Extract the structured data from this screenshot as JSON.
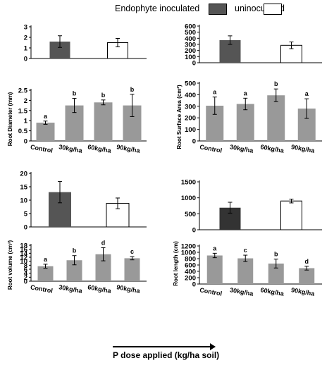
{
  "legend": {
    "items": [
      {
        "label": "Endophyte inoculated",
        "color": "#555555"
      },
      {
        "label": "uninoculated",
        "color": "#ffffff"
      }
    ]
  },
  "x_axis_note": "P dose applied (kg/ha soil)",
  "colors": {
    "inoculated": "#555555",
    "uninoculated": "#ffffff",
    "dose": "#999999"
  },
  "chart_data": [
    {
      "id": "diam-top",
      "type": "bar",
      "categories": [
        "inoculated",
        "uninoculated"
      ],
      "values": [
        1.6,
        1.5
      ],
      "errors": [
        0.55,
        0.4
      ],
      "colors": [
        "#555555",
        "#ffffff"
      ],
      "ylim": [
        0,
        3
      ],
      "yticks": [
        0,
        1,
        2,
        3
      ],
      "ylabel": "",
      "xlabels": [
        "",
        ""
      ]
    },
    {
      "id": "diam-bottom",
      "type": "bar",
      "categories": [
        "Control",
        "30kg/ha",
        "60kg/ha",
        "90kg/ha"
      ],
      "values": [
        0.9,
        1.75,
        1.9,
        1.75
      ],
      "errors": [
        0.08,
        0.35,
        0.12,
        0.55
      ],
      "letters": [
        "a",
        "b",
        "b",
        "b"
      ],
      "colors": [
        "#999999",
        "#999999",
        "#999999",
        "#999999"
      ],
      "ylim": [
        0,
        2.5
      ],
      "yticks": [
        0,
        0.5,
        1,
        1.5,
        2,
        2.5
      ],
      "ytick_labels": [
        "0",
        "0.5",
        "1",
        "1.5",
        "2",
        "2.5"
      ],
      "ylabel": "Root Diameter (mm)"
    },
    {
      "id": "sa-top",
      "type": "bar",
      "categories": [
        "inoculated",
        "uninoculated"
      ],
      "values": [
        370,
        285
      ],
      "errors": [
        70,
        55
      ],
      "colors": [
        "#555555",
        "#ffffff"
      ],
      "ylim": [
        0,
        600
      ],
      "yticks": [
        0,
        100,
        200,
        300,
        400,
        500,
        600
      ],
      "ylabel": "",
      "xlabels": [
        "",
        ""
      ]
    },
    {
      "id": "sa-bottom",
      "type": "bar",
      "categories": [
        "Control",
        "30kg/ha",
        "60kg/ha",
        "90kg/ha"
      ],
      "values": [
        305,
        320,
        395,
        280
      ],
      "errors": [
        75,
        50,
        55,
        85
      ],
      "letters": [
        "a",
        "a",
        "b",
        "a"
      ],
      "colors": [
        "#999999",
        "#999999",
        "#999999",
        "#999999"
      ],
      "ylim": [
        0,
        500
      ],
      "yticks": [
        0,
        100,
        200,
        300,
        400,
        500
      ],
      "ylabel": "Root Surface Area (cm²)"
    },
    {
      "id": "vol-top",
      "type": "bar",
      "categories": [
        "inoculated",
        "uninoculated"
      ],
      "values": [
        13,
        8.8
      ],
      "errors": [
        4,
        2
      ],
      "colors": [
        "#555555",
        "#ffffff"
      ],
      "ylim": [
        0,
        20
      ],
      "yticks": [
        0,
        5,
        10,
        15,
        20
      ],
      "ylabel": "",
      "xlabels": [
        "",
        ""
      ]
    },
    {
      "id": "vol-bottom",
      "type": "bar",
      "categories": [
        "Control",
        "30kg/ha",
        "60kg/ha",
        "90kg/ha"
      ],
      "values": [
        7.5,
        10.5,
        13.5,
        11.5
      ],
      "errors": [
        1,
        2.3,
        3.3,
        0.8
      ],
      "letters": [
        "a",
        "b",
        "d",
        "c"
      ],
      "colors": [
        "#999999",
        "#999999",
        "#999999",
        "#999999"
      ],
      "ylim": [
        0,
        18
      ],
      "yticks": [
        0,
        2,
        4,
        6,
        8,
        10,
        12,
        14,
        16,
        18
      ],
      "ylabel": "Root volume (cm³)"
    },
    {
      "id": "len-top",
      "type": "bar",
      "categories": [
        "inoculated",
        "uninoculated"
      ],
      "values": [
        690,
        900
      ],
      "errors": [
        170,
        60
      ],
      "colors": [
        "#333333",
        "#ffffff"
      ],
      "ylim": [
        0,
        1500
      ],
      "yticks": [
        0,
        500,
        1000,
        1500
      ],
      "ylabel": "",
      "xlabels": [
        "",
        ""
      ]
    },
    {
      "id": "len-bottom",
      "type": "bar",
      "categories": [
        "Control",
        "30kg/ha",
        "60kg/ha",
        "90kg/ha"
      ],
      "values": [
        900,
        810,
        645,
        500
      ],
      "errors": [
        70,
        100,
        140,
        60
      ],
      "letters": [
        "a",
        "c",
        "b",
        "d"
      ],
      "colors": [
        "#999999",
        "#999999",
        "#999999",
        "#999999"
      ],
      "ylim": [
        0,
        1200
      ],
      "yticks": [
        0,
        200,
        400,
        600,
        800,
        1000,
        1200
      ],
      "ylabel": "Root length (cm)"
    }
  ]
}
